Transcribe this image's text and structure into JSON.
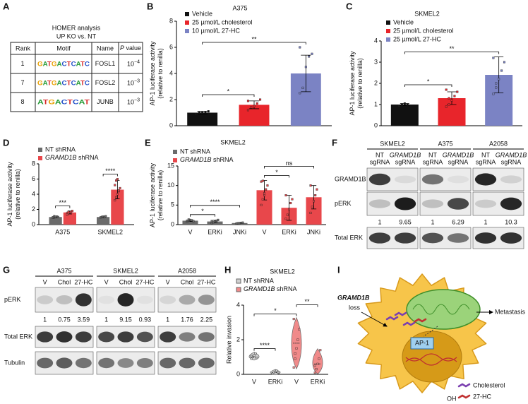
{
  "panel_labels": [
    "A",
    "B",
    "C",
    "D",
    "E",
    "F",
    "G",
    "H",
    "I"
  ],
  "table": {
    "title": "HOMER analysis",
    "subtitle": "UP KO vs. NT",
    "header": [
      "Rank",
      "Motif",
      "Name",
      "P value"
    ],
    "rows": [
      {
        "rank": 1,
        "motif": "GATGACTCATC",
        "name": "FOSL1",
        "p_value": {
          "base": "10",
          "exp": "−4"
        }
      },
      {
        "rank": 7,
        "motif": "GATGACTCATC",
        "name": "FOSL2",
        "p_value": {
          "base": "10",
          "exp": "−3"
        }
      },
      {
        "rank": 8,
        "motif": "ATGACTCAT",
        "name": "JUNB",
        "p_value": {
          "base": "10",
          "exp": "−3"
        }
      }
    ]
  },
  "chart_data": [
    {
      "type": "bar",
      "title": "A375",
      "ylabel": [
        "AP-1 luciferase activity",
        "(relative to renilla)"
      ],
      "ylim": [
        0,
        8
      ],
      "yticks": [
        0,
        2,
        4,
        6,
        8
      ],
      "series": [
        {
          "name": "Vehicle",
          "color": "#111111",
          "values": [
            1.0,
            null,
            null
          ],
          "errors": [
            0.1,
            null,
            null
          ],
          "points": [
            [
              0.9,
              1.0,
              1.0,
              1.05,
              1.1
            ],
            null,
            null
          ]
        },
        {
          "name": "25 µmol/L cholesterol",
          "color": "#e8252b",
          "values": [
            null,
            1.6,
            null
          ],
          "errors": [
            null,
            0.3,
            null
          ],
          "points": [
            null,
            [
              1.2,
              1.4,
              1.5,
              1.7,
              2.0,
              1.9
            ],
            null
          ]
        },
        {
          "name": "10 µmol/L 27-HC",
          "color": "#7b83c4",
          "values": [
            null,
            null,
            4.0
          ],
          "errors": [
            null,
            null,
            1.4
          ],
          "points": [
            null,
            null,
            [
              2.5,
              2.9,
              4.5,
              5.3,
              5.5,
              6.0
            ]
          ]
        }
      ],
      "significance": [
        {
          "between": [
            0,
            1
          ],
          "label": "*"
        },
        {
          "between": [
            0,
            2
          ],
          "label": "**"
        }
      ]
    },
    {
      "type": "bar",
      "title": "SKMEL2",
      "ylabel": [
        "AP-1 luciferase activity",
        "(relative to renilla)"
      ],
      "ylim": [
        0,
        4
      ],
      "yticks": [
        0,
        1,
        2,
        3,
        4
      ],
      "series": [
        {
          "name": "Vehicle",
          "color": "#111111",
          "values": [
            1.0,
            null,
            null
          ],
          "errors": [
            0.05,
            null,
            null
          ],
          "points": [
            [
              0.95,
              1.0,
              1.05,
              1.0
            ],
            null,
            null
          ]
        },
        {
          "name": "25 µmol/L cholesterol",
          "color": "#e8252b",
          "values": [
            null,
            1.3,
            null
          ],
          "errors": [
            null,
            0.3,
            null
          ],
          "points": [
            null,
            [
              0.9,
              1.0,
              1.2,
              1.4,
              1.6,
              1.7,
              1.3
            ],
            null
          ]
        },
        {
          "name": "25 µmol/L 27-HC",
          "color": "#7b83c4",
          "values": [
            null,
            null,
            2.4
          ],
          "errors": [
            null,
            null,
            0.85
          ],
          "points": [
            null,
            null,
            [
              1.5,
              1.8,
              2.2,
              2.6,
              3.0,
              3.2,
              2.0
            ]
          ]
        }
      ],
      "significance": [
        {
          "between": [
            0,
            1
          ],
          "label": "*"
        },
        {
          "between": [
            0,
            2
          ],
          "label": "**"
        }
      ]
    },
    {
      "type": "bar",
      "ylabel": [
        "AP-1 luciferase activity",
        "(relative to renilla)"
      ],
      "categories": [
        "A375",
        "SKMEL2"
      ],
      "ylim": [
        0,
        8
      ],
      "yticks": [
        0,
        2,
        4,
        6,
        8
      ],
      "series": [
        {
          "name": "NT shRNA",
          "color": "#6b6b6b",
          "values": [
            1.0,
            1.0
          ],
          "errors": [
            0.1,
            0.1
          ],
          "points": [
            [
              0.9,
              0.95,
              1.0,
              1.05,
              1.0,
              0.98,
              1.1,
              1.02
            ],
            [
              0.95,
              1.0,
              1.05,
              1.0,
              1.1
            ]
          ]
        },
        {
          "name": "GRAMD1B shRNA",
          "color": "#e8474b",
          "values": [
            1.6,
            4.6
          ],
          "errors": [
            0.2,
            1.2
          ],
          "points": [
            [
              1.3,
              1.5,
              1.6,
              1.7,
              1.8,
              1.55,
              1.65
            ],
            [
              3.2,
              3.6,
              4.0,
              4.4,
              4.8,
              5.2,
              5.8,
              6.0,
              4.5
            ]
          ]
        }
      ],
      "significance": [
        {
          "category": 0,
          "label": "***"
        },
        {
          "category": 1,
          "label": "****"
        }
      ]
    },
    {
      "type": "bar",
      "title": "SKMEL2",
      "ylabel": [
        "AP-1 luciferase activity",
        "(relative to renilla)"
      ],
      "categories": [
        "V",
        "ERKi",
        "JNKi",
        "V",
        "ERKi",
        "JNKi"
      ],
      "ylim": [
        0,
        15
      ],
      "yticks": [
        0,
        5,
        10,
        15
      ],
      "series": [
        {
          "name": "NT shRNA",
          "color": "#6b6b6b",
          "values": [
            1.0,
            0.8,
            0.4,
            null,
            null,
            null
          ],
          "errors": [
            0.2,
            0.3,
            0.1,
            null,
            null,
            null
          ],
          "points": [
            [
              0.8,
              1.0,
              1.2,
              1.1,
              0.9,
              1.0,
              1.3
            ],
            [
              0.4,
              0.6,
              0.8,
              1.0,
              1.2,
              0.9
            ],
            [
              0.3,
              0.35,
              0.4,
              0.45,
              0.5
            ],
            null,
            null,
            null
          ]
        },
        {
          "name": "GRAMD1B shRNA",
          "color": "#e8474b",
          "values": [
            null,
            null,
            null,
            8.8,
            4.3,
            7.0
          ],
          "errors": [
            null,
            null,
            null,
            2.5,
            3.2,
            3.0
          ],
          "points": [
            null,
            null,
            null,
            [
              5,
              6.5,
              7.5,
              9,
              10,
              11,
              11.2,
              8
            ],
            [
              1.5,
              2.5,
              4,
              5.5,
              6.5,
              7.5
            ],
            [
              3,
              4.5,
              6,
              7.5,
              9,
              10
            ]
          ]
        }
      ],
      "significance": [
        {
          "between": [
            0,
            1
          ],
          "label": "*"
        },
        {
          "between": [
            0,
            2
          ],
          "label": "****"
        },
        {
          "between": [
            3,
            4
          ],
          "label": "*"
        },
        {
          "between": [
            3,
            5
          ],
          "label": "ns"
        }
      ]
    },
    {
      "type": "violin",
      "title": "SKMEL2",
      "ylabel": [
        "Relative invasion"
      ],
      "categories": [
        "V",
        "ERKi",
        "V",
        "ERKi"
      ],
      "ylim": [
        0,
        4
      ],
      "yticks": [
        0,
        2,
        4
      ],
      "series": [
        {
          "name": "NT shRNA",
          "color": "#d0d0d0",
          "values": [
            1.0,
            0.1,
            null,
            null
          ],
          "points": [
            [
              0.9,
              1.0,
              1.1,
              1.2,
              0.95,
              1.05
            ],
            [
              0.05,
              0.1,
              0.15,
              0.2,
              0.1
            ],
            null,
            null
          ]
        },
        {
          "name": "GRAMD1B shRNA",
          "color": "#f08a8a",
          "values": [
            null,
            null,
            1.8,
            0.6
          ],
          "points": [
            null,
            null,
            [
              0.4,
              0.9,
              1.5,
              2.0,
              2.6,
              3.2,
              1.2
            ],
            [
              0.1,
              0.3,
              0.6,
              0.9,
              1.4,
              0.5
            ]
          ]
        }
      ],
      "significance": [
        {
          "between": [
            0,
            1
          ],
          "label": "****"
        },
        {
          "between": [
            0,
            2
          ],
          "label": "*"
        },
        {
          "between": [
            2,
            3
          ],
          "label": "**"
        }
      ]
    }
  ],
  "blot_F": {
    "cell_lines": [
      {
        "name": "SKMEL2",
        "quant": [
          1,
          9.65
        ]
      },
      {
        "name": "A375",
        "quant": [
          1,
          6.29
        ]
      },
      {
        "name": "A2058",
        "quant": [
          1,
          10.3
        ]
      }
    ],
    "lanes": [
      [
        "NT",
        "sgRNA"
      ],
      [
        "GRAMD1B",
        "sgRNA"
      ]
    ],
    "rows": [
      "GRAMD1B",
      "pERK",
      "Total ERK"
    ]
  },
  "blot_G": {
    "cell_lines": [
      {
        "name": "A375",
        "quant": [
          1,
          0.75,
          3.59
        ]
      },
      {
        "name": "SKMEL2",
        "quant": [
          1,
          9.15,
          0.93
        ]
      },
      {
        "name": "A2058",
        "quant": [
          1,
          1.76,
          2.25
        ]
      }
    ],
    "lanes": [
      [
        "V"
      ],
      [
        "Chol"
      ],
      [
        "27-HC"
      ]
    ],
    "rows": [
      "pERK",
      "Total ERK",
      "Tubulin"
    ]
  },
  "diagram": {
    "gene": "GRAMD1B",
    "loss": "loss",
    "outcome": "Metastasis",
    "factor": "AP-1",
    "legend": [
      "Cholesterol",
      "27-HC"
    ],
    "hydroxyl": "OH"
  }
}
